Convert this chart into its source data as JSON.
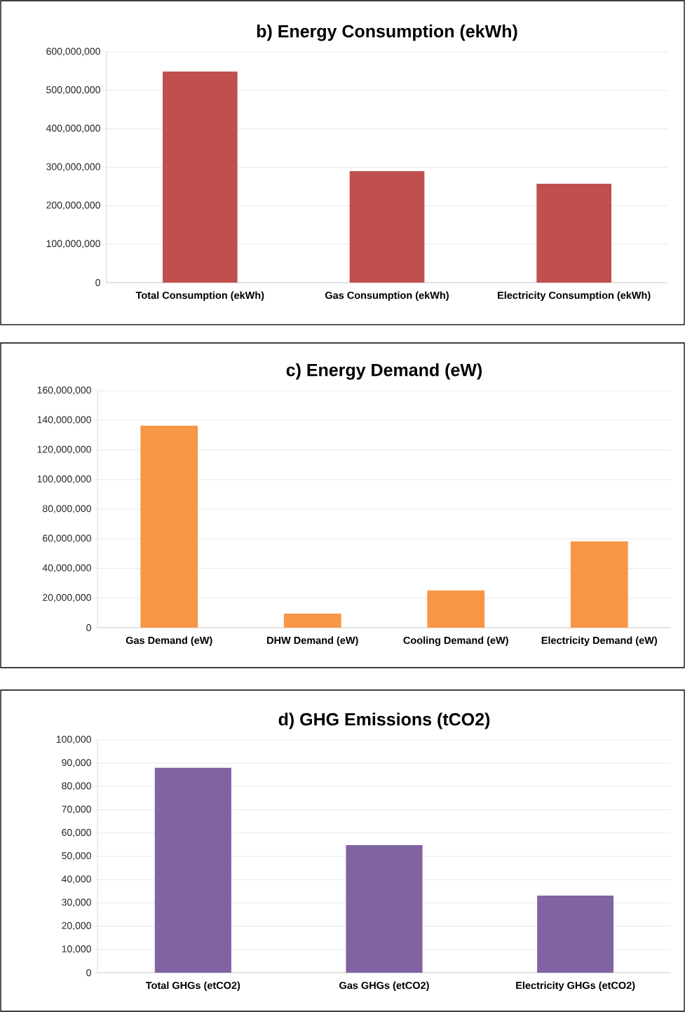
{
  "chart_data": [
    {
      "type": "bar",
      "title": "b) Energy Consumption (ekWh)",
      "categories": [
        "Total Consumption (ekWh)",
        "Gas Consumption (ekWh)",
        "Electricity Consumption (ekWh)"
      ],
      "values": [
        549000000,
        290000000,
        257000000
      ],
      "color": "#c0504d",
      "ylim": [
        0,
        600000000
      ],
      "yticks": [
        {
          "value": 0,
          "label": "0"
        },
        {
          "value": 100000000,
          "label": "100,000,000"
        },
        {
          "value": 200000000,
          "label": "200,000,000"
        },
        {
          "value": 300000000,
          "label": "300,000,000"
        },
        {
          "value": 400000000,
          "label": "400,000,000"
        },
        {
          "value": 500000000,
          "label": "500,000,000"
        },
        {
          "value": 600000000,
          "label": "600,000,000"
        }
      ],
      "grid": "y"
    },
    {
      "type": "bar",
      "title": "c) Energy Demand (eW)",
      "categories": [
        "Gas Demand (eW)",
        "DHW Demand  (eW)",
        "Cooling Demand  (eW)",
        "Electricity Demand  (eW)"
      ],
      "values": [
        136300000,
        9500000,
        25100000,
        58200000
      ],
      "color": "#f79646",
      "ylim": [
        0,
        160000000
      ],
      "yticks": [
        {
          "value": 0,
          "label": "0"
        },
        {
          "value": 20000000,
          "label": "20,000,000"
        },
        {
          "value": 40000000,
          "label": "40,000,000"
        },
        {
          "value": 60000000,
          "label": "60,000,000"
        },
        {
          "value": 80000000,
          "label": "80,000,000"
        },
        {
          "value": 100000000,
          "label": "100,000,000"
        },
        {
          "value": 120000000,
          "label": "120,000,000"
        },
        {
          "value": 140000000,
          "label": "140,000,000"
        },
        {
          "value": 160000000,
          "label": "160,000,000"
        }
      ],
      "grid": "y"
    },
    {
      "type": "bar",
      "title": "d) GHG Emissions (tCO2)",
      "categories": [
        "Total GHGs (etCO2)",
        "Gas GHGs (etCO2)",
        "Electricity GHGs (etCO2)"
      ],
      "values": [
        88000,
        54800,
        33100
      ],
      "color": "#8064a2",
      "ylim": [
        0,
        100000
      ],
      "yticks": [
        {
          "value": 0,
          "label": "0"
        },
        {
          "value": 10000,
          "label": "10,000"
        },
        {
          "value": 20000,
          "label": "20,000"
        },
        {
          "value": 30000,
          "label": "30,000"
        },
        {
          "value": 40000,
          "label": "40,000"
        },
        {
          "value": 50000,
          "label": "50,000"
        },
        {
          "value": 60000,
          "label": "60,000"
        },
        {
          "value": 70000,
          "label": "70,000"
        },
        {
          "value": 80000,
          "label": "80,000"
        },
        {
          "value": 90000,
          "label": "90,000"
        },
        {
          "value": 100000,
          "label": "100,000"
        }
      ],
      "grid": "y"
    }
  ]
}
